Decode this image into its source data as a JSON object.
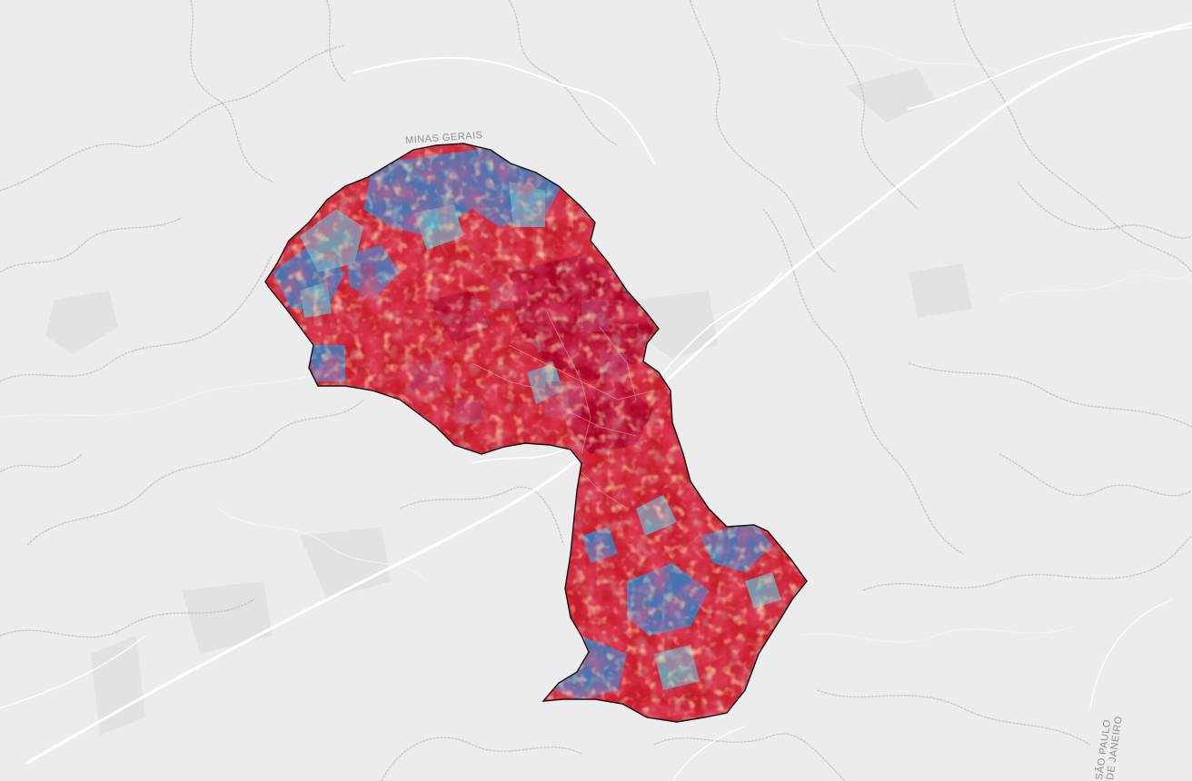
{
  "basemap": {
    "background_color": "#ececec",
    "road_color": "#ffffff",
    "boundary_color": "#c4c4c4"
  },
  "labels": {
    "state_mg": "MINAS GERAIS",
    "state_sp": "SÃO PAULO",
    "state_rj": "DE JANEIRO"
  },
  "overlay": {
    "color_scale": [
      "#2c7bb6",
      "#57b1c9",
      "#abdda4",
      "#ffffbf",
      "#fdae61",
      "#d7191c",
      "#a50026"
    ],
    "outline_color": "#111111"
  }
}
